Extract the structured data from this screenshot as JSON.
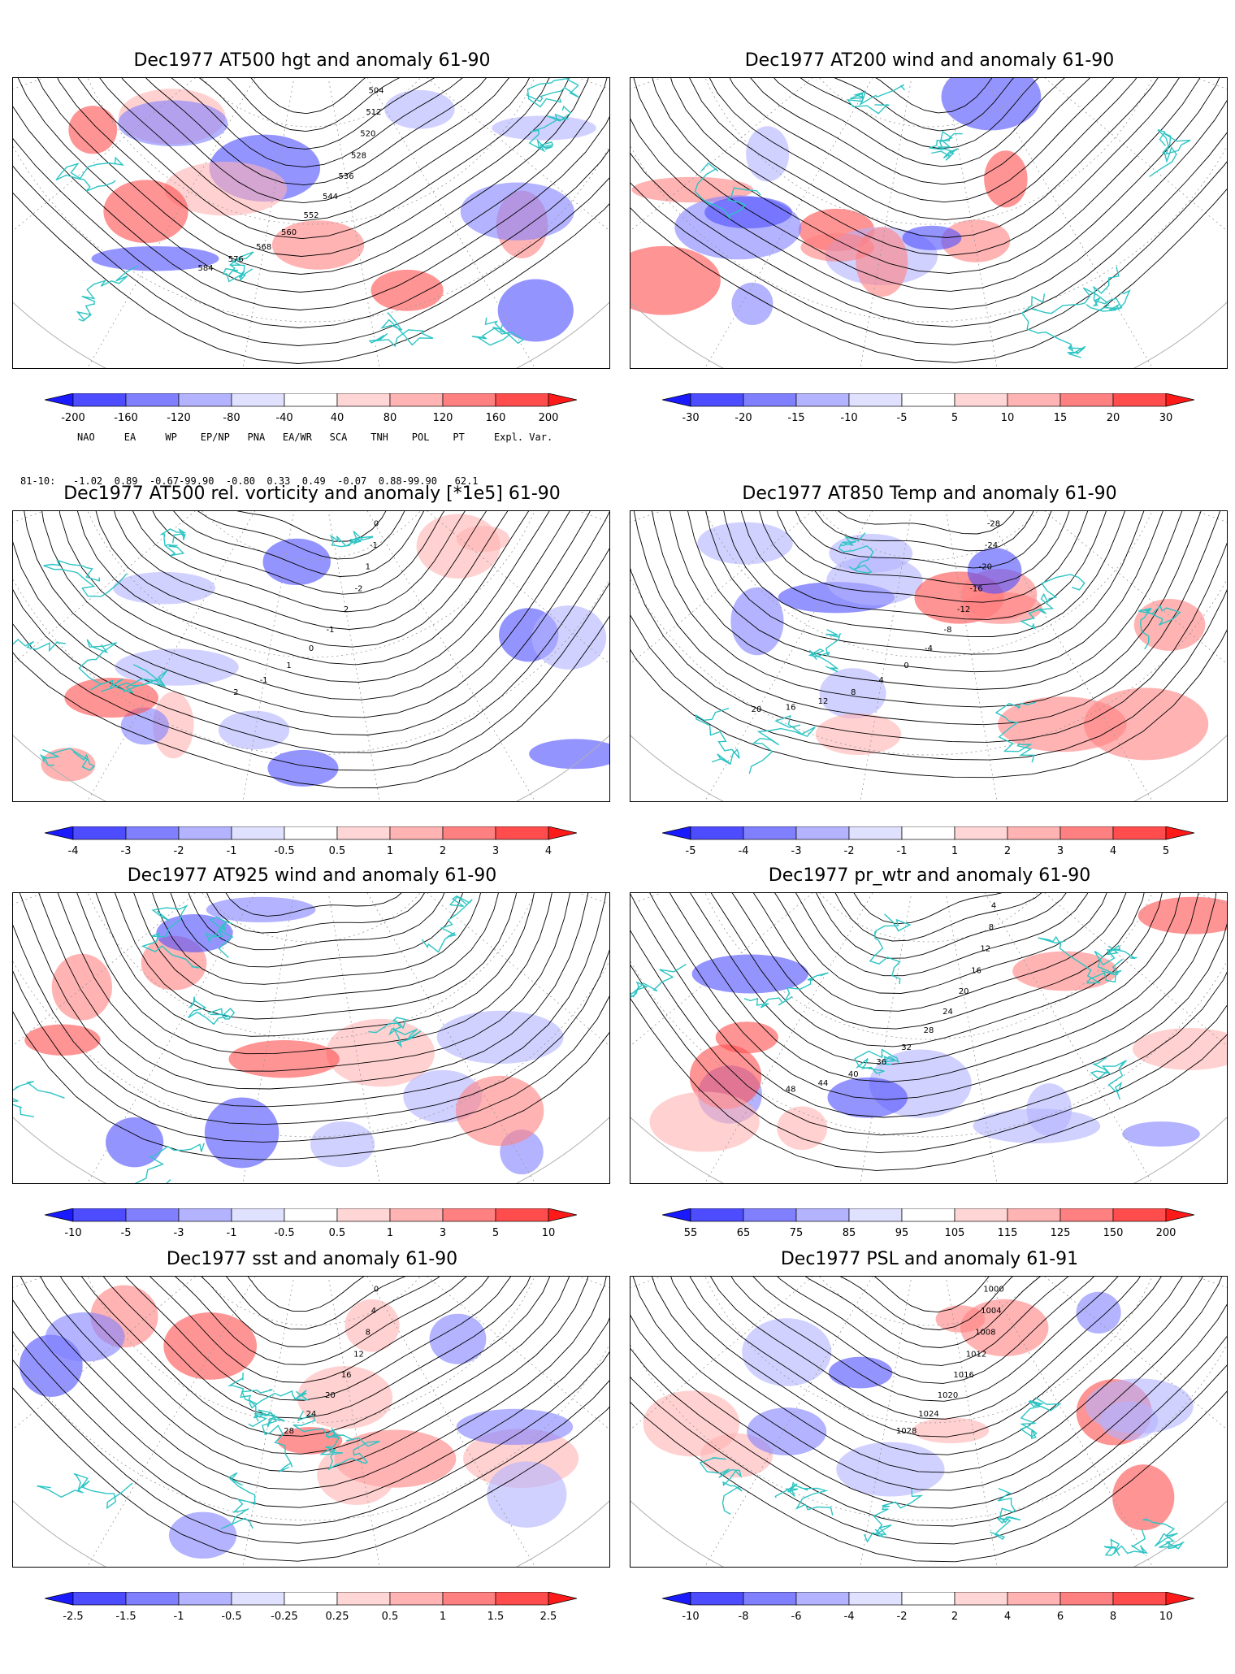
{
  "panels": [
    {
      "title": "Dec1977 AT500 hgt and anomaly 61-90",
      "contour_labels": [
        "504",
        "512",
        "520",
        "528",
        "536",
        "544",
        "552",
        "560",
        "568",
        "576",
        "584"
      ],
      "colorbar": {
        "levels": [
          "-200",
          "-160",
          "-120",
          "-80",
          "-40",
          "40",
          "80",
          "120",
          "160",
          "200"
        ],
        "colors": [
          "#1a1aff",
          "#4d4dff",
          "#8080ff",
          "#b3b3ff",
          "#e0e0ff",
          "#ffffff",
          "#ffd6d6",
          "#ffb3b3",
          "#ff8080",
          "#ff4d4d",
          "#ff1a1a"
        ]
      }
    },
    {
      "title": "Dec1977 AT200 wind and anomaly 61-90",
      "contour_labels": [],
      "colorbar": {
        "levels": [
          "-30",
          "-20",
          "-15",
          "-10",
          "-5",
          "5",
          "10",
          "15",
          "20",
          "30"
        ],
        "colors": [
          "#1a1aff",
          "#4d4dff",
          "#8080ff",
          "#b3b3ff",
          "#e0e0ff",
          "#ffffff",
          "#ffd6d6",
          "#ffb3b3",
          "#ff8080",
          "#ff4d4d",
          "#ff1a1a"
        ]
      }
    },
    {
      "title": "Dec1977 AT500 rel. vorticity and anomaly [*1e5] 61-90",
      "contour_labels": [
        "0",
        "-1",
        "1",
        "-2",
        "2",
        "-1",
        "0",
        "1",
        "-1",
        "2"
      ],
      "colorbar": {
        "levels": [
          "-4",
          "-3",
          "-2",
          "-1",
          "-0.5",
          "0.5",
          "1",
          "2",
          "3",
          "4"
        ],
        "colors": [
          "#1a1aff",
          "#4d4dff",
          "#8080ff",
          "#b3b3ff",
          "#e0e0ff",
          "#ffffff",
          "#ffd6d6",
          "#ffb3b3",
          "#ff8080",
          "#ff4d4d",
          "#ff1a1a"
        ]
      }
    },
    {
      "title": "Dec1977 AT850 Temp and anomaly 61-90",
      "contour_labels": [
        "-28",
        "-24",
        "-20",
        "-16",
        "-12",
        "-8",
        "-4",
        "0",
        "4",
        "8",
        "12",
        "16",
        "20"
      ],
      "colorbar": {
        "levels": [
          "-5",
          "-4",
          "-3",
          "-2",
          "-1",
          "1",
          "2",
          "3",
          "4",
          "5"
        ],
        "colors": [
          "#1a1aff",
          "#4d4dff",
          "#8080ff",
          "#b3b3ff",
          "#e0e0ff",
          "#ffffff",
          "#ffd6d6",
          "#ffb3b3",
          "#ff8080",
          "#ff4d4d",
          "#ff1a1a"
        ]
      }
    },
    {
      "title": "Dec1977 AT925 wind and anomaly 61-90",
      "contour_labels": [],
      "colorbar": {
        "levels": [
          "-10",
          "-5",
          "-3",
          "-1",
          "-0.5",
          "0.5",
          "1",
          "3",
          "5",
          "10"
        ],
        "colors": [
          "#1a1aff",
          "#4d4dff",
          "#8080ff",
          "#b3b3ff",
          "#e0e0ff",
          "#ffffff",
          "#ffd6d6",
          "#ffb3b3",
          "#ff8080",
          "#ff4d4d",
          "#ff1a1a"
        ]
      }
    },
    {
      "title": "Dec1977 pr_wtr and anomaly 61-90",
      "contour_labels": [
        "4",
        "8",
        "12",
        "16",
        "20",
        "24",
        "28",
        "32",
        "36",
        "40",
        "44",
        "48"
      ],
      "colorbar": {
        "levels": [
          "55",
          "65",
          "75",
          "85",
          "95",
          "105",
          "115",
          "125",
          "150",
          "200"
        ],
        "colors": [
          "#1a1aff",
          "#4d4dff",
          "#8080ff",
          "#b3b3ff",
          "#e0e0ff",
          "#ffffff",
          "#ffd6d6",
          "#ffb3b3",
          "#ff8080",
          "#ff4d4d",
          "#ff1a1a"
        ]
      }
    },
    {
      "title": "Dec1977 sst and anomaly 61-90",
      "contour_labels": [
        "0",
        "4",
        "8",
        "12",
        "16",
        "20",
        "24",
        "28"
      ],
      "colorbar": {
        "levels": [
          "-2.5",
          "-1.5",
          "-1",
          "-0.5",
          "-0.25",
          "0.25",
          "0.5",
          "1",
          "1.5",
          "2.5"
        ],
        "colors": [
          "#1a1aff",
          "#4d4dff",
          "#8080ff",
          "#b3b3ff",
          "#e0e0ff",
          "#ffffff",
          "#ffd6d6",
          "#ffb3b3",
          "#ff8080",
          "#ff4d4d",
          "#ff1a1a"
        ]
      }
    },
    {
      "title": "Dec1977 PSL and anomaly 61-91",
      "contour_labels": [
        "1000",
        "1004",
        "1008",
        "1012",
        "1016",
        "1020",
        "1024",
        "1028"
      ],
      "colorbar": {
        "levels": [
          "-10",
          "-8",
          "-6",
          "-4",
          "-2",
          "2",
          "4",
          "6",
          "8",
          "10"
        ],
        "colors": [
          "#1a1aff",
          "#4d4dff",
          "#8080ff",
          "#b3b3ff",
          "#e0e0ff",
          "#ffffff",
          "#ffd6d6",
          "#ffb3b3",
          "#ff8080",
          "#ff4d4d",
          "#ff1a1a"
        ]
      }
    }
  ],
  "indices": {
    "headers": "NAO     EA     WP    EP/NP   PNA   EA/WR   SCA    TNH    POL    PT     Expl. Var.",
    "row": "81-10:   -1.02  0.89  -0.67-99.90  -0.80  0.33  0.49  -0.07  0.88-99.90   62.1"
  }
}
